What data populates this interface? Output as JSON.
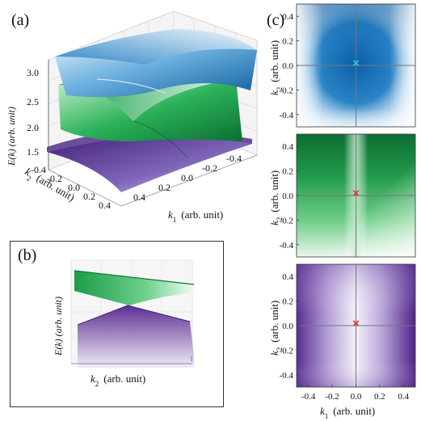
{
  "panels": {
    "a": "(a)",
    "b": "(b)",
    "c": "(c)"
  },
  "colors": {
    "blue_band": "#1f7fc8",
    "green_band": "#12a84a",
    "purple_band": "#5b2f93",
    "marker_cyan": "#35c8e8",
    "marker_red": "#e0302a",
    "crosshair": "#777777"
  },
  "chart_data": [
    {
      "id": "a",
      "type": "surface3d",
      "zlabel": "E(k) (arb. unit)",
      "xlabel_sym": "k",
      "xlabel_sub": "1",
      "xlabel_unit": "(arb. unit)",
      "ylabel_sym": "k",
      "ylabel_sub": "2",
      "ylabel_unit": "(arb. unit)",
      "z_ticks": [
        "1.5",
        "2.0",
        "2.5",
        "3.0"
      ],
      "k1_ticks": [
        "0.4",
        "0.2",
        "0.0",
        "-0.2",
        "-0.4"
      ],
      "k2_ticks": [
        "-0.4",
        "-0.2",
        "0.0",
        "0.2",
        "0.4"
      ],
      "series": [
        {
          "name": "",
          "color": "#1f7fc8",
          "zrange": [
            2.3,
            3.3
          ]
        },
        {
          "name": "",
          "color": "#12a84a",
          "zrange": [
            1.5,
            2.7
          ]
        },
        {
          "name": "",
          "color": "#5b2f93",
          "zrange": [
            1.1,
            1.6
          ]
        }
      ]
    },
    {
      "id": "b",
      "type": "surface3d-side",
      "zlabel": "E(k) (arb. unit)",
      "xlabel_sym": "k",
      "xlabel_sub": "2",
      "xlabel_unit": "(arb. unit)"
    },
    {
      "id": "c",
      "type": "heatmap",
      "xlim": [
        -0.5,
        0.5
      ],
      "ylim": [
        -0.5,
        0.5
      ],
      "x_ticks": [
        "-0.4",
        "-0.2",
        "0.0",
        "0.2",
        "0.4"
      ],
      "y_ticks": [
        "0.4",
        "0.2",
        "0.0",
        "-0.2",
        "-0.4"
      ],
      "xlabel_sym": "k",
      "xlabel_sub": "1",
      "xlabel_unit": "(arb. unit)",
      "ylabel_sym": "k",
      "ylabel_sub": "2",
      "ylabel_unit": "(arb. unit)",
      "maps": [
        {
          "band": "blue",
          "marker": {
            "x": 0.0,
            "y": 0.02,
            "color": "#35c8e8"
          }
        },
        {
          "band": "green",
          "marker": {
            "x": 0.0,
            "y": 0.02,
            "color": "#e0302a"
          }
        },
        {
          "band": "purple",
          "marker": {
            "x": 0.0,
            "y": 0.02,
            "color": "#e0302a"
          }
        }
      ]
    }
  ]
}
